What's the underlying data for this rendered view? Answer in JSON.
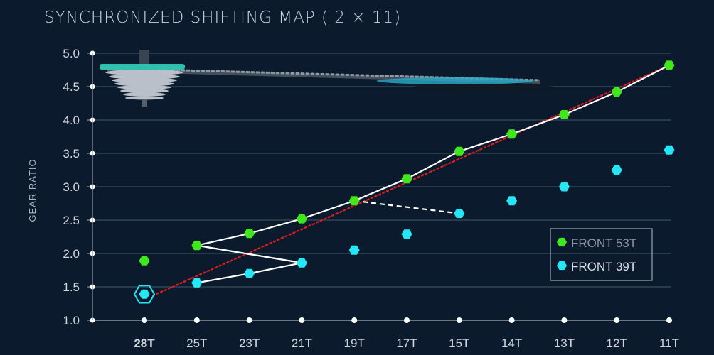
{
  "title": "SYNCHRONIZED SHIFTING MAP ( 2 × 11)",
  "chart_data": {
    "type": "scatter",
    "title": "SYNCHRONIZED SHIFTING MAP ( 2 × 11)",
    "xlabel": "",
    "ylabel": "GEAR RATIO",
    "categories": [
      "28T",
      "25T",
      "23T",
      "21T",
      "19T",
      "17T",
      "15T",
      "14T",
      "13T",
      "12T",
      "11T"
    ],
    "highlight_category": "28T",
    "highlight_color": "#e01d1d",
    "yticks": [
      "1.0",
      "1.5",
      "2.0",
      "2.5",
      "3.0",
      "3.5",
      "4.0",
      "4.5",
      "5.0"
    ],
    "ylim": [
      1.0,
      5.0
    ],
    "grid": true,
    "legend_position": "bottom-right",
    "series": [
      {
        "name": "FRONT 53T",
        "color": "#3ee81c",
        "values": [
          1.89,
          2.12,
          2.3,
          2.52,
          2.79,
          3.12,
          3.53,
          3.79,
          4.08,
          4.42,
          4.82
        ]
      },
      {
        "name": "FRONT 39T",
        "color": "#25e6f5",
        "values": [
          1.39,
          1.56,
          1.7,
          1.86,
          2.05,
          2.29,
          2.6,
          2.79,
          3.0,
          3.25,
          3.55
        ]
      }
    ],
    "shift_path": {
      "color": "#ffffff",
      "points": [
        [
          1,
          "FRONT 39T"
        ],
        [
          2,
          "FRONT 39T"
        ],
        [
          3,
          "FRONT 39T"
        ],
        [
          1,
          "FRONT 53T"
        ],
        [
          2,
          "FRONT 53T"
        ],
        [
          3,
          "FRONT 53T"
        ],
        [
          4,
          "FRONT 53T"
        ],
        [
          5,
          "FRONT 53T"
        ],
        [
          6,
          "FRONT 53T"
        ],
        [
          7,
          "FRONT 53T"
        ],
        [
          8,
          "FRONT 53T"
        ],
        [
          9,
          "FRONT 53T"
        ],
        [
          10,
          "FRONT 53T"
        ]
      ]
    },
    "shift_links": {
      "color": "#ffffff",
      "pairs": [
        [
          [
            1,
            "FRONT 53T"
          ],
          [
            3,
            "FRONT 39T"
          ]
        ],
        [
          [
            4,
            "FRONT 53T"
          ],
          [
            6,
            "FRONT 39T"
          ]
        ]
      ]
    },
    "trend_line": {
      "color": "#e01d1d",
      "from": [
        0,
        "FRONT 39T"
      ],
      "to": [
        10,
        "FRONT 53T"
      ]
    },
    "current_gear": {
      "category": "28T",
      "series": "FRONT 39T"
    }
  }
}
